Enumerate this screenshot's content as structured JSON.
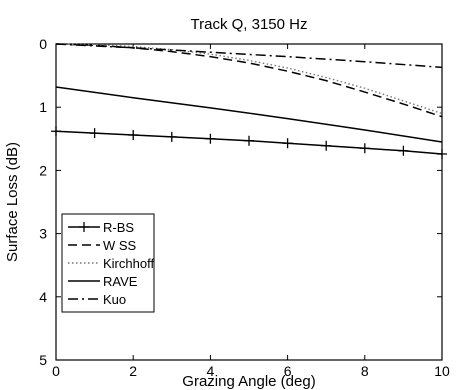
{
  "chart_data": {
    "type": "line",
    "title": "Track Q, 3150 Hz",
    "xlabel": "Grazing Angle (deg)",
    "ylabel": "Surface Loss (dB)",
    "xlim": [
      0,
      10
    ],
    "ylim": [
      0,
      5
    ],
    "y_reversed": true,
    "grid": false,
    "x_ticks": [
      0,
      2,
      4,
      6,
      8,
      10
    ],
    "y_ticks": [
      0,
      1,
      2,
      3,
      4,
      5
    ],
    "legend_position": "bottom-left",
    "series": [
      {
        "name": "R-BS",
        "style": "solid-plus",
        "color": "#000000",
        "x": [
          0,
          1,
          2,
          3,
          4,
          5,
          6,
          7,
          8,
          9,
          10
        ],
        "y": [
          1.38,
          1.41,
          1.44,
          1.47,
          1.5,
          1.53,
          1.57,
          1.61,
          1.65,
          1.69,
          1.74
        ]
      },
      {
        "name": "W SS",
        "style": "dashed",
        "color": "#000000",
        "x": [
          0,
          1,
          2,
          3,
          4,
          5,
          6,
          7,
          8,
          9,
          10
        ],
        "y": [
          0.0,
          0.02,
          0.06,
          0.12,
          0.2,
          0.3,
          0.43,
          0.58,
          0.76,
          0.95,
          1.15
        ]
      },
      {
        "name": "Kirchhoff",
        "style": "dotted",
        "color": "#777777",
        "x": [
          0,
          1,
          2,
          3,
          4,
          5,
          6,
          7,
          8,
          9,
          10
        ],
        "y": [
          0.0,
          0.01,
          0.04,
          0.09,
          0.16,
          0.26,
          0.38,
          0.53,
          0.7,
          0.9,
          1.1
        ]
      },
      {
        "name": "RAVE",
        "style": "solid",
        "color": "#000000",
        "x": [
          0,
          2,
          4,
          6,
          8,
          10
        ],
        "y": [
          0.68,
          0.85,
          1.01,
          1.18,
          1.36,
          1.55
        ]
      },
      {
        "name": "Kuo",
        "style": "dash-dot",
        "color": "#000000",
        "x": [
          0,
          2,
          4,
          6,
          8,
          10
        ],
        "y": [
          0.0,
          0.06,
          0.13,
          0.2,
          0.28,
          0.37
        ]
      }
    ]
  }
}
